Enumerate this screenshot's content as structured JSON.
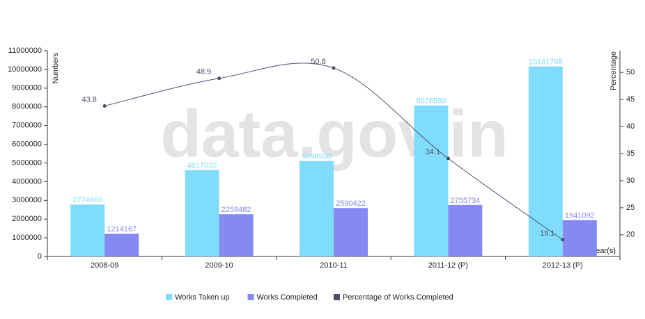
{
  "chart_data": {
    "type": "bar-line",
    "watermark": "data.gov.in",
    "y_label": "Numbers",
    "y2_label": "Percentage",
    "x_label": "Year(s)",
    "categories": [
      "2008-09",
      "2009-10",
      "2010-11",
      "2011-12 (P)",
      "2012-13 (P)"
    ],
    "series": [
      {
        "name": "Works Taken up",
        "color": "#80dcfc",
        "type": "bar",
        "values": [
          2774660,
          4617032,
          5098930,
          8076599,
          10161798
        ]
      },
      {
        "name": "Works Completed",
        "color": "#8589f2",
        "type": "bar",
        "values": [
          1214167,
          2259482,
          2590422,
          2755734,
          1941092
        ]
      },
      {
        "name": "Percentage of Works Completed",
        "color": "#4b4f6e",
        "type": "line",
        "axis": "y2",
        "values": [
          43.8,
          48.9,
          50.8,
          34.1,
          19.1
        ]
      }
    ],
    "ylim": [
      0,
      11000000
    ],
    "yticks": [
      0,
      1000000,
      2000000,
      3000000,
      4000000,
      5000000,
      6000000,
      7000000,
      8000000,
      9000000,
      10000000,
      11000000
    ],
    "y2lim": [
      16,
      54
    ],
    "y2ticks": [
      20,
      25,
      30,
      35,
      40,
      45,
      50
    ],
    "legend": "bottom"
  }
}
